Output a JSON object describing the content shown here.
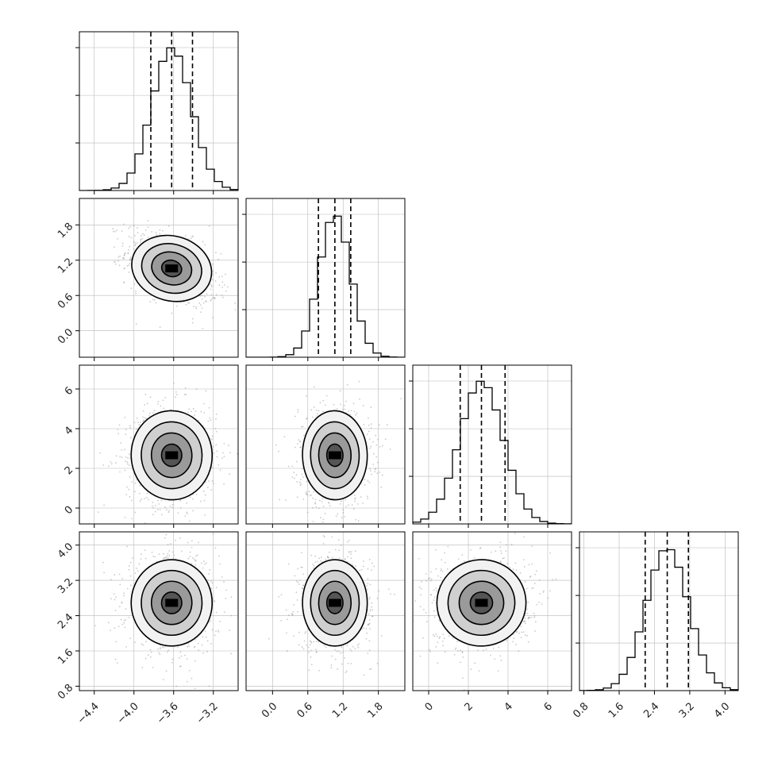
{
  "chart_data": {
    "type": "corner",
    "dimensions": 4,
    "parameters": [
      {
        "range": [
          -4.55,
          -2.95
        ],
        "ticks": [
          -4.4,
          -4.0,
          -3.6,
          -3.2
        ],
        "tick_labels": [
          "−4.4",
          "−4.0",
          "−3.6",
          "−3.2"
        ],
        "quantiles": [
          -3.83,
          -3.62,
          -3.41
        ],
        "mean": -3.62,
        "sd": 0.2
      },
      {
        "range": [
          -0.45,
          2.25
        ],
        "ticks": [
          0.0,
          0.6,
          1.2,
          1.8
        ],
        "tick_labels": [
          "0.0",
          "0.6",
          "1.2",
          "1.8"
        ],
        "quantiles": [
          0.78,
          1.06,
          1.33
        ],
        "mean": 1.06,
        "sd": 0.27
      },
      {
        "range": [
          -0.8,
          7.2
        ],
        "ticks": [
          0,
          2,
          4,
          6
        ],
        "tick_labels": [
          "0",
          "2",
          "4",
          "6"
        ],
        "quantiles": [
          1.59,
          2.66,
          3.85
        ],
        "mean": 2.66,
        "sd": 1.1
      },
      {
        "range": [
          0.7,
          4.3
        ],
        "ticks": [
          0.8,
          1.6,
          2.4,
          3.2,
          4.0
        ],
        "tick_labels": [
          "0.8",
          "1.6",
          "2.4",
          "3.2",
          "4.0"
        ],
        "quantiles": [
          2.19,
          2.69,
          3.17
        ],
        "mean": 2.69,
        "sd": 0.48
      }
    ],
    "histogram_bins": 20,
    "contour_levels": [
      "0.5-sigma",
      "1-sigma",
      "1.5-sigma",
      "2-sigma"
    ],
    "correlations": {
      "1-0": -0.45,
      "2-0": 0.05,
      "2-1": 0.02,
      "3-0": 0.0,
      "3-1": 0.0,
      "3-2": 0.08
    },
    "grid": true
  }
}
